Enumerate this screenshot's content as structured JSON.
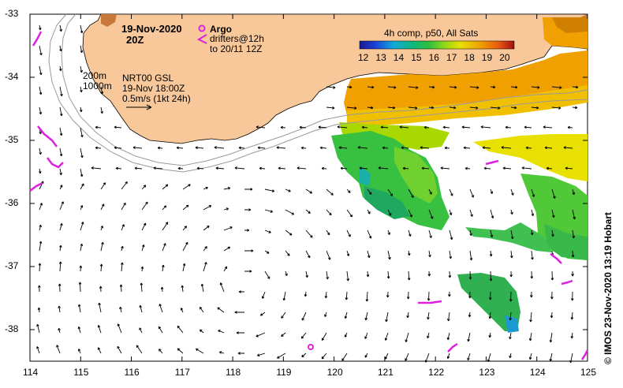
{
  "map": {
    "title_date": "19-Nov-2020",
    "title_time": "20Z",
    "legend": {
      "argo_label": "Argo",
      "drifters_label": "drifters@12h",
      "drifters_label2": "to 20/11 12Z",
      "argo_color": "#e020e0"
    },
    "contours": {
      "c200": "200m",
      "c1000": "1000m"
    },
    "product": {
      "name": "NRT00 GSL",
      "time": "19-Nov 18:00Z",
      "scale": "0.5m/s (1kt 24h)"
    },
    "sst": {
      "title": "4h comp, p50, All Sats",
      "ticks": [
        "12",
        "13",
        "14",
        "15",
        "16",
        "17",
        "18",
        "19",
        "20"
      ]
    },
    "axes": {
      "lon_ticks": [
        "114",
        "115",
        "116",
        "117",
        "118",
        "119",
        "120",
        "121",
        "122",
        "123",
        "124",
        "125"
      ],
      "lat_ticks": [
        "-33",
        "-34",
        "-35",
        "-36",
        "-37",
        "-38"
      ]
    },
    "credit": "© IMOS 23-Nov-2020 13:19 Hobart",
    "colors": {
      "land": "#f8c89a",
      "contour": "#9a9a9a",
      "vector": "#000000",
      "drifter": "#e020e0"
    }
  }
}
